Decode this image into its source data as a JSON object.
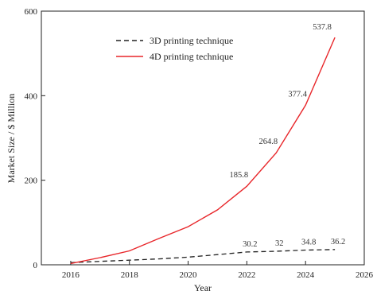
{
  "chart_data": {
    "type": "line",
    "xlabel": "Year",
    "ylabel": "Market Size / $ Million",
    "xlim": [
      2015,
      2026
    ],
    "ylim": [
      0,
      600
    ],
    "x_ticks": [
      2016,
      2018,
      2020,
      2022,
      2024,
      2026
    ],
    "y_ticks": [
      0,
      200,
      400,
      600
    ],
    "legend_position": "top-center",
    "grid": false,
    "series": [
      {
        "name": "3D printing technique",
        "style": "dashed",
        "color": "#222222",
        "x": [
          2016,
          2017,
          2018,
          2019,
          2020,
          2021,
          2022,
          2023,
          2024,
          2025
        ],
        "y": [
          5,
          8,
          11,
          14,
          18,
          24,
          30.2,
          32,
          34.8,
          36.2
        ],
        "labels": [
          {
            "x": 2022,
            "y": 30.2,
            "text": "30.2"
          },
          {
            "x": 2023,
            "y": 32,
            "text": "32"
          },
          {
            "x": 2024,
            "y": 34.8,
            "text": "34.8"
          },
          {
            "x": 2025,
            "y": 36.2,
            "text": "36.2"
          }
        ]
      },
      {
        "name": "4D printing technique",
        "style": "solid",
        "color": "#e8262a",
        "x": [
          2016,
          2017,
          2018,
          2019,
          2020,
          2021,
          2022,
          2023,
          2024,
          2025
        ],
        "y": [
          3,
          17,
          33,
          62,
          90,
          130,
          185.8,
          264.8,
          377.4,
          537.8
        ],
        "labels": [
          {
            "x": 2022,
            "y": 185.8,
            "text": "185.8"
          },
          {
            "x": 2023,
            "y": 264.8,
            "text": "264.8"
          },
          {
            "x": 2024,
            "y": 377.4,
            "text": "377.4"
          },
          {
            "x": 2025,
            "y": 537.8,
            "text": "537.8"
          }
        ]
      }
    ]
  }
}
